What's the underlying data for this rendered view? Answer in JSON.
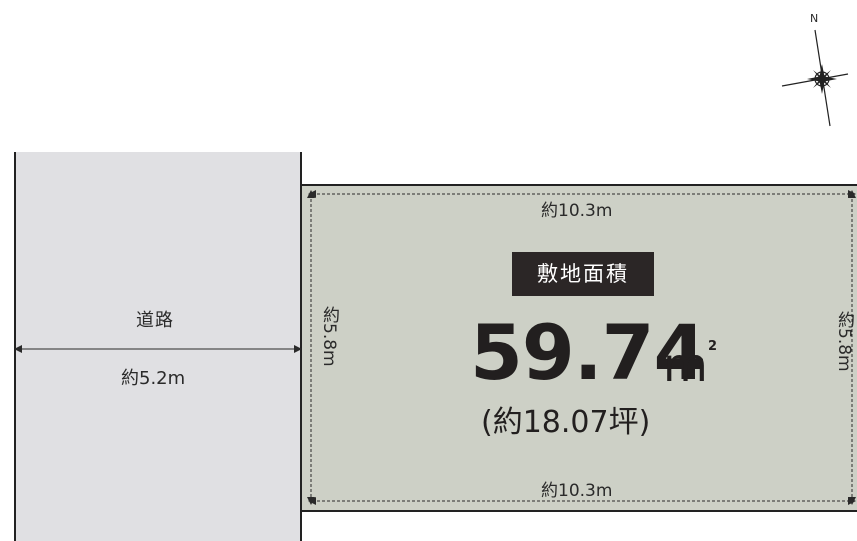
{
  "road": {
    "label": "道路",
    "width": "約5.2m"
  },
  "lot": {
    "top_dimension": "約10.3m",
    "bottom_dimension": "約10.3m",
    "left_dimension": "約5.8m",
    "right_dimension": "約5.8m",
    "area_badge": "敷地面積",
    "area_value": "59.74",
    "area_unit": "m",
    "area_unit_sup": "2",
    "area_tsubo": "(約18.07坪)"
  },
  "compass": {
    "north_label": "N",
    "icon": "compass-rose-icon"
  },
  "colors": {
    "road_fill": "#e0e0e3",
    "lot_fill": "#cdd0c6",
    "badge_fill": "#2b2626",
    "ink": "#221f1f"
  }
}
